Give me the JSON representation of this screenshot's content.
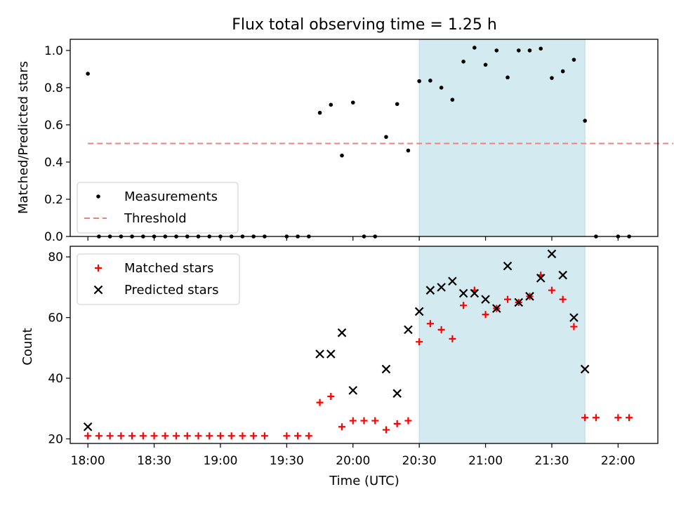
{
  "chart_data": [
    {
      "type": "scatter",
      "title": "Flux total observing time = 1.25 h",
      "xlabel": "",
      "ylabel": "Matched/Predicted stars",
      "ylim": [
        0,
        1.06
      ],
      "yticks": [
        "0.0",
        "0.2",
        "0.4",
        "0.6",
        "0.8",
        "1.0"
      ],
      "xlim": [
        "17:52",
        "22:18"
      ],
      "legend_position": "lower-left",
      "highlight_span": {
        "from": "20:30",
        "to": "21:45",
        "color": "#d3eaf0"
      },
      "threshold": {
        "name": "Threshold",
        "y": 0.5,
        "from": "18:00",
        "to": "22:25",
        "color": "#f08080",
        "style": "dashed"
      },
      "series": [
        {
          "name": "Measurements",
          "marker": "dot",
          "color": "#000000",
          "x": [
            "18:00",
            "18:05",
            "18:10",
            "18:15",
            "18:20",
            "18:25",
            "18:30",
            "18:35",
            "18:40",
            "18:45",
            "18:50",
            "18:55",
            "19:00",
            "19:05",
            "19:10",
            "19:15",
            "19:20",
            "19:30",
            "19:35",
            "19:40",
            "19:45",
            "19:50",
            "19:55",
            "20:00",
            "20:05",
            "20:10",
            "20:15",
            "20:20",
            "20:25",
            "20:30",
            "20:35",
            "20:40",
            "20:45",
            "20:50",
            "20:55",
            "21:00",
            "21:05",
            "21:10",
            "21:15",
            "21:20",
            "21:25",
            "21:30",
            "21:35",
            "21:40",
            "21:45",
            "21:50",
            "22:00",
            "22:05"
          ],
          "y": [
            0.875,
            0,
            0,
            0,
            0,
            0,
            0,
            0,
            0,
            0,
            0,
            0,
            0,
            0,
            0,
            0,
            0,
            0,
            0,
            0,
            0.665,
            0.708,
            0.435,
            0.72,
            0,
            0,
            0.535,
            0.712,
            0.462,
            0.835,
            0.838,
            0.8,
            0.735,
            0.94,
            1.015,
            0.923,
            1.0,
            0.855,
            1.0,
            1.0,
            1.01,
            0.852,
            0.888,
            0.95,
            0.622,
            0,
            0,
            0
          ]
        }
      ]
    },
    {
      "type": "scatter",
      "title": "",
      "xlabel": "Time (UTC)",
      "ylabel": "Count",
      "ylim": [
        18.5,
        83.5
      ],
      "yticks": [
        "20",
        "40",
        "60",
        "80"
      ],
      "xlim": [
        "17:52",
        "22:18"
      ],
      "xticks": [
        "18:00",
        "18:30",
        "19:00",
        "19:30",
        "20:00",
        "20:30",
        "21:00",
        "21:30",
        "22:00"
      ],
      "legend_position": "upper-left",
      "highlight_span": {
        "from": "20:30",
        "to": "21:45",
        "color": "#d3eaf0"
      },
      "series": [
        {
          "name": "Matched stars",
          "marker": "plus",
          "color": "#ff0000",
          "x": [
            "18:00",
            "18:05",
            "18:10",
            "18:15",
            "18:20",
            "18:25",
            "18:30",
            "18:35",
            "18:40",
            "18:45",
            "18:50",
            "18:55",
            "19:00",
            "19:05",
            "19:10",
            "19:15",
            "19:20",
            "19:30",
            "19:35",
            "19:40",
            "19:45",
            "19:50",
            "19:55",
            "20:00",
            "20:05",
            "20:10",
            "20:15",
            "20:20",
            "20:25",
            "20:30",
            "20:35",
            "20:40",
            "20:45",
            "20:50",
            "20:55",
            "21:00",
            "21:05",
            "21:10",
            "21:15",
            "21:20",
            "21:25",
            "21:30",
            "21:35",
            "21:40",
            "21:45",
            "21:50",
            "22:00",
            "22:05"
          ],
          "y": [
            21,
            21,
            21,
            21,
            21,
            21,
            21,
            21,
            21,
            21,
            21,
            21,
            21,
            21,
            21,
            21,
            21,
            21,
            21,
            21,
            32,
            34,
            24,
            26,
            26,
            26,
            23,
            25,
            26,
            52,
            58,
            56,
            53,
            64,
            69,
            61,
            63,
            66,
            65,
            67,
            74,
            69,
            66,
            57,
            27,
            27,
            27,
            27
          ]
        },
        {
          "name": "Predicted stars",
          "marker": "x",
          "color": "#000000",
          "x": [
            "18:00",
            "19:45",
            "19:50",
            "19:55",
            "20:00",
            "20:15",
            "20:20",
            "20:25",
            "20:30",
            "20:35",
            "20:40",
            "20:45",
            "20:50",
            "20:55",
            "21:00",
            "21:05",
            "21:10",
            "21:15",
            "21:20",
            "21:25",
            "21:30",
            "21:35",
            "21:40",
            "21:45"
          ],
          "y": [
            24,
            48,
            48,
            55,
            36,
            43,
            35,
            56,
            62,
            69,
            70,
            72,
            68,
            68,
            66,
            63,
            77,
            65,
            67,
            73,
            81,
            74,
            60,
            43
          ]
        }
      ]
    }
  ]
}
